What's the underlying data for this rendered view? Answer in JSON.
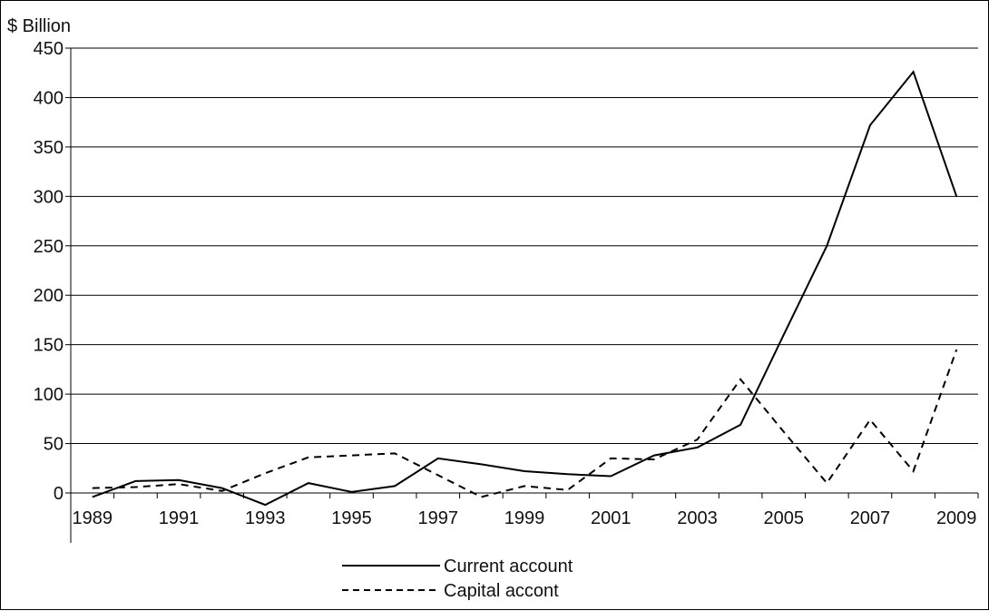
{
  "chart_data": {
    "type": "line",
    "title": "",
    "ylabel": "$ Billion",
    "xlabel": "",
    "ylim": [
      -10,
      450
    ],
    "y_ticks": [
      0,
      50,
      100,
      150,
      200,
      250,
      300,
      350,
      400,
      450
    ],
    "x": [
      1989,
      1990,
      1991,
      1992,
      1993,
      1994,
      1995,
      1996,
      1997,
      1998,
      1999,
      2000,
      2001,
      2002,
      2003,
      2004,
      2005,
      2006,
      2007,
      2008,
      2009
    ],
    "x_tick_labels": [
      "1989",
      "1991",
      "1993",
      "1995",
      "1997",
      "1999",
      "2001",
      "2003",
      "2005",
      "2007",
      "2009"
    ],
    "grid": "horizontal",
    "legend_position": "bottom-center",
    "series": [
      {
        "name": "Current account",
        "style": "solid",
        "color": "#000000",
        "values": [
          -4,
          12,
          13,
          5,
          -12,
          10,
          1,
          7,
          35,
          29,
          22,
          19,
          17,
          38,
          46,
          69,
          160,
          250,
          372,
          426,
          300
        ]
      },
      {
        "name": "Capital accont",
        "style": "dashed",
        "color": "#000000",
        "values": [
          5,
          6,
          9,
          2,
          20,
          36,
          38,
          40,
          18,
          -4,
          7,
          3,
          35,
          34,
          54,
          115,
          62,
          10,
          74,
          22,
          145
        ]
      }
    ]
  }
}
